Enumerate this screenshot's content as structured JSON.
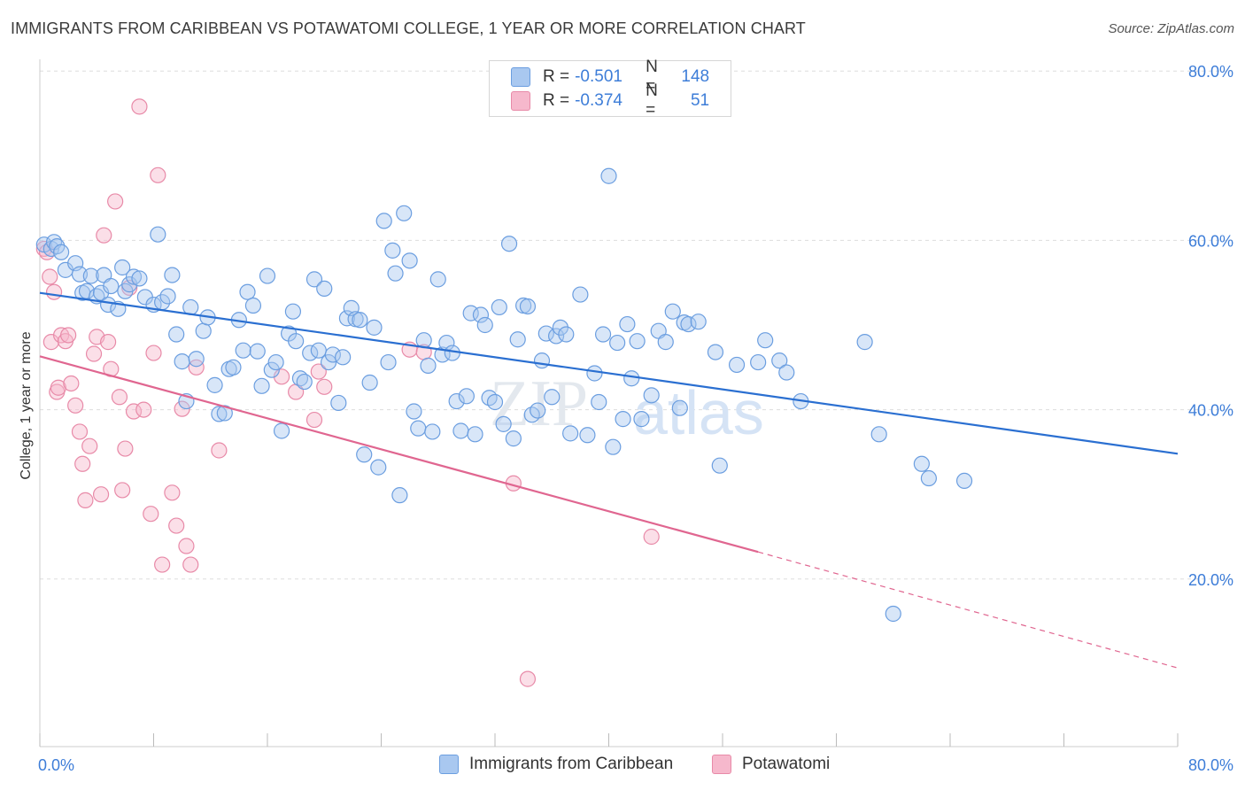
{
  "header": {
    "title": "IMMIGRANTS FROM CARIBBEAN VS POTAWATOMI COLLEGE, 1 YEAR OR MORE CORRELATION CHART",
    "source": "Source: ZipAtlas.com"
  },
  "legend_top": {
    "rows": [
      {
        "r_label": "R =",
        "r_value": "-0.501",
        "n_label": "N =",
        "n_value": "148"
      },
      {
        "r_label": "R =",
        "r_value": "-0.374",
        "n_label": "N =",
        "n_value": "51"
      }
    ]
  },
  "legend_bottom": {
    "items": [
      "Immigrants from Caribbean",
      "Potawatomi"
    ]
  },
  "watermark": {
    "zip": "ZIP",
    "atlas": "atlas"
  },
  "colors": {
    "blue_fill": "#a9c8f0",
    "blue_stroke": "#6b9ee0",
    "blue_line": "#2a6fd1",
    "pink_fill": "#f6b8cc",
    "pink_stroke": "#e88aa8",
    "pink_line": "#e06690",
    "tick_text": "#3d7dd8",
    "grid": "#dddddd"
  },
  "chart_data": {
    "type": "scatter",
    "title": "IMMIGRANTS FROM CARIBBEAN VS POTAWATOMI COLLEGE, 1 YEAR OR MORE CORRELATION CHART",
    "xlabel": "",
    "ylabel": "College, 1 year or more",
    "xlim": [
      0,
      80
    ],
    "ylim": [
      0,
      80
    ],
    "x_tick_labels": [
      "0.0%",
      "80.0%"
    ],
    "y_tick_labels": [
      "20.0%",
      "40.0%",
      "60.0%",
      "80.0%"
    ],
    "y_ticks": [
      20,
      40,
      60,
      80
    ],
    "grid": true,
    "legend_position": "top-center",
    "series": [
      {
        "name": "Immigrants from Caribbean",
        "color": "#a9c8f0",
        "trend": {
          "x": [
            0,
            80
          ],
          "y": [
            53.8,
            34.8
          ]
        },
        "points": [
          [
            0.3,
            59.5
          ],
          [
            0.8,
            59.0
          ],
          [
            1.0,
            59.8
          ],
          [
            1.2,
            59.3
          ],
          [
            1.5,
            58.6
          ],
          [
            1.8,
            56.5
          ],
          [
            2.5,
            57.3
          ],
          [
            2.8,
            56.0
          ],
          [
            3.0,
            53.8
          ],
          [
            3.3,
            54.0
          ],
          [
            3.6,
            55.8
          ],
          [
            4.0,
            53.4
          ],
          [
            4.3,
            53.8
          ],
          [
            4.5,
            55.9
          ],
          [
            4.8,
            52.4
          ],
          [
            5.0,
            54.6
          ],
          [
            5.5,
            51.9
          ],
          [
            5.8,
            56.8
          ],
          [
            6.0,
            54.0
          ],
          [
            6.3,
            54.8
          ],
          [
            6.6,
            55.7
          ],
          [
            7.0,
            55.5
          ],
          [
            7.4,
            53.3
          ],
          [
            8.0,
            52.4
          ],
          [
            8.3,
            60.7
          ],
          [
            8.6,
            52.7
          ],
          [
            9.0,
            53.4
          ],
          [
            9.3,
            55.9
          ],
          [
            9.6,
            48.9
          ],
          [
            10.0,
            45.7
          ],
          [
            10.3,
            41.0
          ],
          [
            10.6,
            52.1
          ],
          [
            11.0,
            46.0
          ],
          [
            11.5,
            49.3
          ],
          [
            11.8,
            50.9
          ],
          [
            12.3,
            42.9
          ],
          [
            12.6,
            39.5
          ],
          [
            13.0,
            39.6
          ],
          [
            13.3,
            44.8
          ],
          [
            13.6,
            45.0
          ],
          [
            14.0,
            50.6
          ],
          [
            14.3,
            47.0
          ],
          [
            14.6,
            53.9
          ],
          [
            15.0,
            52.3
          ],
          [
            15.3,
            46.9
          ],
          [
            15.6,
            42.8
          ],
          [
            16.0,
            55.8
          ],
          [
            16.3,
            44.7
          ],
          [
            16.6,
            45.6
          ],
          [
            17.0,
            37.5
          ],
          [
            17.5,
            49.0
          ],
          [
            17.8,
            51.6
          ],
          [
            18.0,
            48.1
          ],
          [
            18.3,
            43.7
          ],
          [
            18.6,
            43.3
          ],
          [
            19.0,
            46.7
          ],
          [
            19.3,
            55.4
          ],
          [
            19.6,
            47.0
          ],
          [
            20.0,
            54.3
          ],
          [
            20.3,
            45.6
          ],
          [
            20.6,
            46.5
          ],
          [
            21.0,
            40.8
          ],
          [
            21.3,
            46.2
          ],
          [
            21.6,
            50.8
          ],
          [
            21.9,
            52.0
          ],
          [
            22.2,
            50.7
          ],
          [
            22.5,
            50.6
          ],
          [
            22.8,
            34.7
          ],
          [
            23.2,
            43.2
          ],
          [
            23.5,
            49.7
          ],
          [
            23.8,
            33.2
          ],
          [
            24.2,
            62.3
          ],
          [
            24.5,
            45.6
          ],
          [
            24.8,
            58.8
          ],
          [
            25.0,
            56.1
          ],
          [
            25.3,
            29.9
          ],
          [
            25.6,
            63.2
          ],
          [
            26.0,
            57.6
          ],
          [
            26.3,
            39.8
          ],
          [
            26.6,
            37.8
          ],
          [
            27.0,
            48.2
          ],
          [
            27.3,
            45.2
          ],
          [
            27.6,
            37.4
          ],
          [
            28.0,
            55.4
          ],
          [
            28.3,
            46.5
          ],
          [
            28.6,
            47.9
          ],
          [
            29.0,
            46.7
          ],
          [
            29.3,
            41.0
          ],
          [
            29.6,
            37.5
          ],
          [
            30.0,
            41.6
          ],
          [
            30.3,
            51.4
          ],
          [
            30.6,
            37.1
          ],
          [
            31.0,
            51.2
          ],
          [
            31.3,
            50.0
          ],
          [
            31.6,
            41.4
          ],
          [
            32.0,
            40.9
          ],
          [
            32.3,
            52.1
          ],
          [
            32.6,
            38.3
          ],
          [
            33.0,
            59.6
          ],
          [
            33.3,
            36.6
          ],
          [
            33.6,
            48.3
          ],
          [
            34.0,
            52.3
          ],
          [
            34.3,
            52.2
          ],
          [
            34.6,
            39.4
          ],
          [
            35.0,
            39.9
          ],
          [
            35.3,
            45.8
          ],
          [
            35.6,
            49.0
          ],
          [
            36.0,
            41.5
          ],
          [
            36.3,
            48.7
          ],
          [
            36.6,
            49.7
          ],
          [
            37.0,
            48.9
          ],
          [
            37.3,
            37.2
          ],
          [
            38.0,
            53.6
          ],
          [
            38.5,
            37.0
          ],
          [
            39.0,
            44.3
          ],
          [
            39.3,
            40.9
          ],
          [
            39.6,
            48.9
          ],
          [
            40.0,
            67.6
          ],
          [
            40.3,
            35.6
          ],
          [
            40.6,
            47.9
          ],
          [
            41.0,
            38.9
          ],
          [
            41.3,
            50.1
          ],
          [
            41.6,
            43.7
          ],
          [
            42.0,
            48.1
          ],
          [
            42.3,
            38.9
          ],
          [
            43.0,
            41.7
          ],
          [
            43.5,
            49.3
          ],
          [
            44.0,
            48.0
          ],
          [
            44.5,
            51.6
          ],
          [
            45.0,
            40.2
          ],
          [
            45.3,
            50.3
          ],
          [
            45.6,
            50.1
          ],
          [
            46.3,
            50.4
          ],
          [
            47.5,
            46.8
          ],
          [
            47.8,
            33.4
          ],
          [
            49.0,
            45.3
          ],
          [
            50.5,
            45.6
          ],
          [
            51.0,
            48.2
          ],
          [
            52.0,
            45.8
          ],
          [
            52.5,
            44.4
          ],
          [
            53.5,
            41.0
          ],
          [
            58.0,
            48.0
          ],
          [
            59.0,
            37.1
          ],
          [
            60.0,
            15.9
          ],
          [
            62.0,
            33.6
          ],
          [
            62.5,
            31.9
          ],
          [
            65.0,
            31.6
          ]
        ]
      },
      {
        "name": "Potawatomi",
        "color": "#f6b8cc",
        "trend": {
          "x": [
            0,
            50.5
          ],
          "y": [
            46.3,
            23.2
          ]
        },
        "trend_dashed": {
          "x": [
            50.5,
            80
          ],
          "y": [
            23.2,
            9.5
          ]
        },
        "points": [
          [
            0.3,
            59.0
          ],
          [
            0.5,
            58.6
          ],
          [
            0.7,
            55.7
          ],
          [
            0.8,
            48.0
          ],
          [
            1.0,
            53.9
          ],
          [
            1.2,
            42.1
          ],
          [
            1.3,
            42.6
          ],
          [
            1.5,
            48.8
          ],
          [
            1.8,
            48.1
          ],
          [
            2.0,
            48.8
          ],
          [
            2.2,
            43.1
          ],
          [
            2.5,
            40.5
          ],
          [
            2.8,
            37.4
          ],
          [
            3.0,
            33.6
          ],
          [
            3.2,
            29.3
          ],
          [
            3.5,
            35.7
          ],
          [
            3.8,
            46.6
          ],
          [
            4.0,
            48.6
          ],
          [
            4.3,
            30.0
          ],
          [
            4.5,
            60.6
          ],
          [
            4.8,
            48.0
          ],
          [
            5.0,
            44.8
          ],
          [
            5.3,
            64.6
          ],
          [
            5.6,
            41.5
          ],
          [
            5.8,
            30.5
          ],
          [
            6.0,
            35.4
          ],
          [
            6.3,
            54.4
          ],
          [
            6.6,
            39.8
          ],
          [
            7.0,
            75.8
          ],
          [
            7.3,
            40.0
          ],
          [
            7.8,
            27.7
          ],
          [
            8.0,
            46.7
          ],
          [
            8.3,
            67.7
          ],
          [
            8.6,
            21.7
          ],
          [
            9.3,
            30.2
          ],
          [
            9.6,
            26.3
          ],
          [
            10.0,
            40.1
          ],
          [
            10.3,
            23.9
          ],
          [
            10.6,
            21.7
          ],
          [
            11.0,
            45.0
          ],
          [
            12.6,
            35.2
          ],
          [
            17.0,
            43.9
          ],
          [
            18.0,
            42.1
          ],
          [
            19.3,
            38.8
          ],
          [
            19.6,
            44.5
          ],
          [
            20.0,
            42.7
          ],
          [
            26.0,
            47.1
          ],
          [
            27.0,
            46.8
          ],
          [
            33.3,
            31.3
          ],
          [
            34.3,
            8.2
          ],
          [
            43.0,
            25.0
          ]
        ]
      }
    ]
  }
}
